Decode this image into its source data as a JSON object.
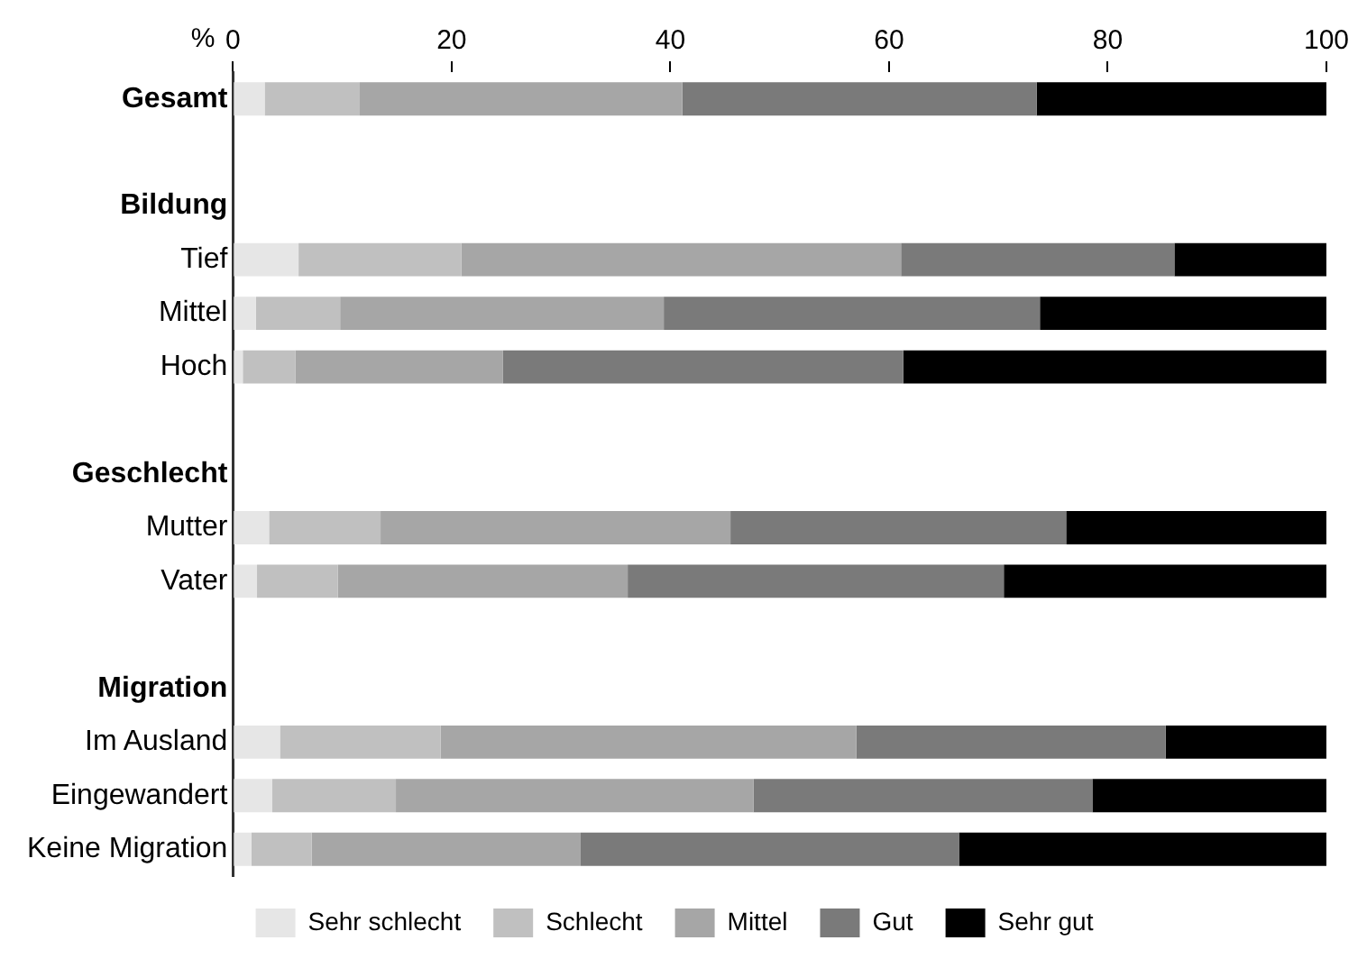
{
  "chart_data": {
    "type": "bar",
    "orientation": "horizontal",
    "stacked": true,
    "xlabel": "%",
    "categories": [
      "Gesamt",
      null,
      "Bildung",
      "Tief",
      "Mittel",
      "Hoch",
      null,
      "Geschlecht",
      "Mutter",
      "Vater",
      null,
      "Migration",
      "Im Ausland",
      "Eingewandert",
      "Keine Migration"
    ],
    "series": [
      {
        "name": "Sehr schlecht",
        "color": "#e6e6e6",
        "values": [
          2.9,
          null,
          null,
          6.0,
          2.1,
          0.9,
          null,
          null,
          3.3,
          2.2,
          null,
          null,
          4.3,
          3.6,
          1.7
        ]
      },
      {
        "name": "Schlecht",
        "color": "#c0c0c0",
        "values": [
          8.7,
          null,
          null,
          14.9,
          7.7,
          4.8,
          null,
          null,
          10.2,
          7.4,
          null,
          null,
          14.7,
          11.3,
          5.5
        ]
      },
      {
        "name": "Mittel",
        "color": "#a6a6a6",
        "values": [
          29.5,
          null,
          null,
          40.2,
          29.6,
          19.0,
          null,
          null,
          32.0,
          26.5,
          null,
          null,
          38.0,
          32.7,
          24.6
        ]
      },
      {
        "name": "Gut",
        "color": "#7a7a7a",
        "values": [
          32.4,
          null,
          null,
          25.0,
          34.4,
          36.6,
          null,
          null,
          30.7,
          34.4,
          null,
          null,
          28.3,
          31.0,
          34.6
        ]
      },
      {
        "name": "Sehr gut",
        "color": "#000000",
        "values": [
          26.5,
          null,
          null,
          13.9,
          26.2,
          38.7,
          null,
          null,
          23.8,
          29.5,
          null,
          null,
          14.7,
          21.4,
          33.6
        ]
      }
    ],
    "xlim": [
      0,
      100
    ],
    "xticks": [
      0,
      20,
      40,
      60,
      80,
      100
    ],
    "grid": false,
    "legend": "bottom"
  }
}
